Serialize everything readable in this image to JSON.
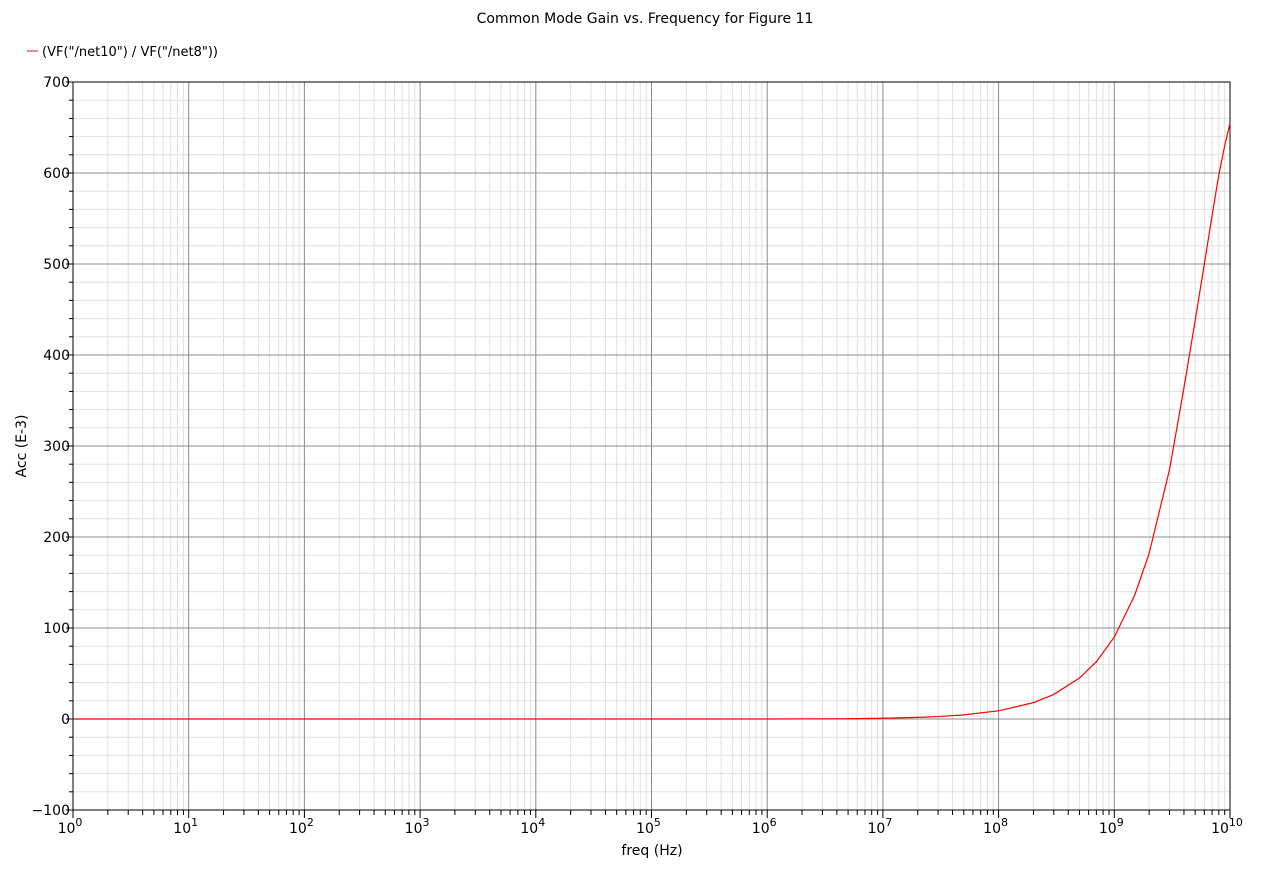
{
  "chart_data": {
    "type": "line",
    "title": "Common Mode Gain vs. Frequency for Figure 11",
    "xlabel": "freq (Hz)",
    "ylabel": "Acc (E-3)",
    "x_scale": "log",
    "xlim": [
      1,
      10000000000
    ],
    "ylim": [
      -100,
      700
    ],
    "y_ticks": [
      -100,
      0,
      100,
      200,
      300,
      400,
      500,
      600,
      700
    ],
    "x_tick_labels": [
      {
        "base": "10",
        "exp": "0"
      },
      {
        "base": "10",
        "exp": "1"
      },
      {
        "base": "10",
        "exp": "2"
      },
      {
        "base": "10",
        "exp": "3"
      },
      {
        "base": "10",
        "exp": "4"
      },
      {
        "base": "10",
        "exp": "5"
      },
      {
        "base": "10",
        "exp": "6"
      },
      {
        "base": "10",
        "exp": "7"
      },
      {
        "base": "10",
        "exp": "8"
      },
      {
        "base": "10",
        "exp": "9"
      },
      {
        "base": "10",
        "exp": "10"
      }
    ],
    "grid": true,
    "legend_position": "top-left",
    "series": [
      {
        "name": "(VF(\"/net10\") / VF(\"/net8\"))",
        "color": "#ff0000",
        "x": [
          1,
          10,
          100,
          1000,
          10000,
          100000,
          1000000,
          5000000,
          10000000,
          20000000,
          30000000,
          50000000,
          100000000,
          200000000,
          300000000,
          500000000,
          700000000,
          1000000000,
          1500000000,
          2000000000,
          3000000000,
          4000000000,
          5000000000,
          6000000000,
          7000000000,
          8000000000,
          9000000000,
          10000000000
        ],
        "y": [
          0,
          0,
          0,
          0,
          0,
          0,
          0,
          0.3,
          0.8,
          1.8,
          2.7,
          4.5,
          9,
          18,
          27,
          45,
          63,
          90,
          136,
          182,
          274,
          364,
          438,
          500,
          553,
          598,
          630,
          655
        ]
      }
    ]
  }
}
